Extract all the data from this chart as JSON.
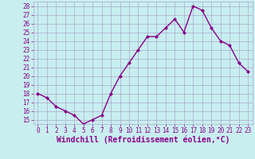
{
  "x": [
    0,
    1,
    2,
    3,
    4,
    5,
    6,
    7,
    8,
    9,
    10,
    11,
    12,
    13,
    14,
    15,
    16,
    17,
    18,
    19,
    20,
    21,
    22,
    23
  ],
  "y": [
    18.0,
    17.5,
    16.5,
    16.0,
    15.5,
    14.5,
    15.0,
    15.5,
    18.0,
    20.0,
    21.5,
    23.0,
    24.5,
    24.5,
    25.5,
    26.5,
    25.0,
    28.0,
    27.5,
    25.5,
    24.0,
    23.5,
    21.5,
    20.5
  ],
  "line_color": "#880088",
  "marker": "D",
  "markersize": 2.0,
  "linewidth": 1.0,
  "bg_color": "#c8eef0",
  "grid_color": "#aaaacc",
  "xlabel": "Windchill (Refroidissement éolien,°C)",
  "ylim_min": 14.5,
  "ylim_max": 28.5,
  "xlim_min": -0.5,
  "xlim_max": 23.5,
  "yticks": [
    15,
    16,
    17,
    18,
    19,
    20,
    21,
    22,
    23,
    24,
    25,
    26,
    27,
    28
  ],
  "xticks": [
    0,
    1,
    2,
    3,
    4,
    5,
    6,
    7,
    8,
    9,
    10,
    11,
    12,
    13,
    14,
    15,
    16,
    17,
    18,
    19,
    20,
    21,
    22,
    23
  ],
  "tick_fontsize": 5.5,
  "xlabel_fontsize": 7.0
}
